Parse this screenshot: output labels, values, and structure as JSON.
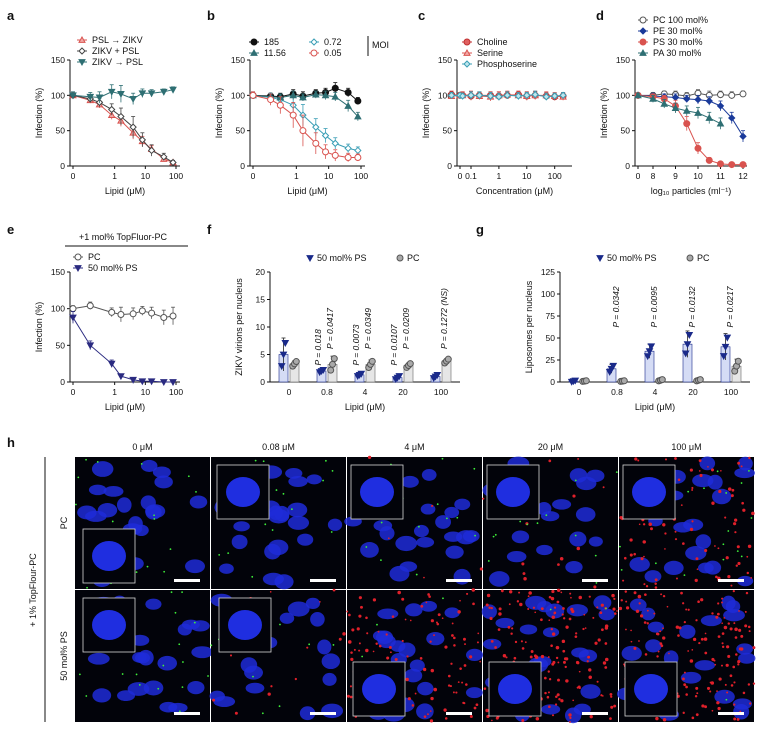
{
  "panels": [
    {
      "id": "a",
      "letter": "a",
      "type": "line",
      "xlabel": "Lipid (μM)",
      "ylabel": "Infection (%)",
      "xlog": true,
      "xzero": true,
      "xticks": [
        "0",
        "1",
        "10",
        "100"
      ],
      "yticks": [
        0,
        50,
        100,
        150
      ],
      "ylim": [
        0,
        150
      ],
      "legend": [
        "PSL → ZIKV",
        "ZIKV + PSL",
        "ZIKV → PSL"
      ],
      "series": [
        {
          "name": "PSL → ZIKV",
          "color": "#d9534f",
          "marker": "triangle",
          "fill": "#f2a8a6",
          "x": [
            0,
            0.16,
            0.32,
            0.8,
            1.6,
            4,
            8,
            16,
            40,
            80
          ],
          "y": [
            100,
            93,
            87,
            72,
            64,
            47,
            35,
            24,
            10,
            5
          ],
          "err": [
            4,
            4,
            5,
            6,
            8,
            9,
            7,
            5,
            3,
            2
          ]
        },
        {
          "name": "ZIKV + PSL",
          "color": "#444444",
          "marker": "diamond",
          "fill": "#ffffff",
          "x": [
            0,
            0.16,
            0.32,
            0.8,
            1.6,
            4,
            8,
            16,
            40,
            80
          ],
          "y": [
            100,
            95,
            90,
            80,
            70,
            55,
            37,
            22,
            13,
            5
          ],
          "err": [
            3,
            5,
            6,
            8,
            12,
            15,
            10,
            8,
            5,
            3
          ]
        },
        {
          "name": "ZIKV → PSL",
          "color": "#2e6f73",
          "marker": "tri-down",
          "fill": "#2e6f73",
          "x": [
            0,
            0.16,
            0.32,
            0.8,
            1.6,
            4,
            8,
            16,
            40,
            80
          ],
          "y": [
            100,
            98,
            97,
            105,
            102,
            95,
            103,
            103,
            105,
            108
          ],
          "err": [
            5,
            6,
            8,
            10,
            12,
            8,
            6,
            5,
            4,
            4
          ]
        }
      ]
    },
    {
      "id": "b",
      "letter": "b",
      "type": "line",
      "xlabel": "Lipid (μM)",
      "ylabel": "Infection (%)",
      "xlog": true,
      "xzero": true,
      "xticks": [
        "0",
        "1",
        "10",
        "100"
      ],
      "yticks": [
        0,
        50,
        100,
        150
      ],
      "ylim": [
        0,
        150
      ],
      "legend": [
        "185",
        "0.72",
        "11.56",
        "0.05"
      ],
      "legend_title": "MOI",
      "series": [
        {
          "name": "185",
          "color": "#111111",
          "marker": "circle",
          "fill": "#111111",
          "x": [
            0,
            0.16,
            0.32,
            0.8,
            1.6,
            4,
            8,
            16,
            40,
            80
          ],
          "y": [
            100,
            99,
            98,
            102,
            99,
            103,
            104,
            110,
            104,
            92
          ],
          "err": [
            3,
            4,
            5,
            6,
            6,
            5,
            6,
            8,
            6,
            5
          ]
        },
        {
          "name": "0.72",
          "color": "#3a9eb5",
          "marker": "diamond",
          "fill": "#ffffff",
          "x": [
            0,
            0.16,
            0.32,
            0.8,
            1.6,
            4,
            8,
            16,
            40,
            80
          ],
          "y": [
            100,
            97,
            94,
            86,
            72,
            55,
            43,
            32,
            25,
            22
          ],
          "err": [
            5,
            6,
            8,
            12,
            15,
            12,
            10,
            8,
            6,
            5
          ]
        },
        {
          "name": "11.56",
          "color": "#2e6f73",
          "marker": "triangle",
          "fill": "#2e6f73",
          "x": [
            0,
            0.16,
            0.32,
            0.8,
            1.6,
            4,
            8,
            16,
            40,
            80
          ],
          "y": [
            100,
            98,
            97,
            100,
            97,
            101,
            100,
            98,
            85,
            70
          ],
          "err": [
            3,
            4,
            5,
            6,
            5,
            5,
            6,
            6,
            8,
            6
          ]
        },
        {
          "name": "0.05",
          "color": "#d9534f",
          "marker": "circle",
          "fill": "#ffffff",
          "x": [
            0,
            0.16,
            0.32,
            0.8,
            1.6,
            4,
            8,
            16,
            40,
            80
          ],
          "y": [
            100,
            94,
            86,
            72,
            50,
            32,
            20,
            15,
            12,
            12
          ],
          "err": [
            5,
            8,
            12,
            18,
            22,
            15,
            10,
            8,
            6,
            5
          ]
        }
      ]
    },
    {
      "id": "c",
      "letter": "c",
      "type": "line",
      "xlabel": "Concentration (μM)",
      "ylabel": "Infection (%)",
      "xlog": true,
      "xzero": true,
      "xticks": [
        "0",
        "0.1",
        "1",
        "10",
        "100"
      ],
      "yticks": [
        0,
        50,
        100,
        150
      ],
      "ylim": [
        0,
        150
      ],
      "legend": [
        "Choline",
        "Serine",
        "Phosphoserine"
      ],
      "series": [
        {
          "name": "Choline",
          "color": "#c03030",
          "marker": "circle",
          "fill": "#e06060",
          "x": [
            0,
            0.02,
            0.05,
            0.1,
            0.2,
            0.5,
            1,
            2,
            5,
            10,
            20,
            50,
            100,
            200
          ],
          "y": [
            100,
            101,
            100,
            99,
            100,
            100,
            99,
            100,
            101,
            99,
            100,
            99,
            98,
            99
          ],
          "err": [
            4,
            5,
            5,
            6,
            5,
            5,
            6,
            5,
            5,
            6,
            5,
            5,
            5,
            5
          ]
        },
        {
          "name": "Serine",
          "color": "#d9534f",
          "marker": "triangle",
          "fill": "#f2a8a6",
          "x": [
            0,
            0.02,
            0.05,
            0.1,
            0.2,
            0.5,
            1,
            2,
            5,
            10,
            20,
            50,
            100,
            200
          ],
          "y": [
            100,
            99,
            100,
            101,
            99,
            98,
            100,
            101,
            100,
            99,
            100,
            100,
            99,
            98
          ],
          "err": [
            4,
            4,
            5,
            5,
            5,
            6,
            5,
            5,
            5,
            5,
            6,
            5,
            5,
            5
          ]
        },
        {
          "name": "Phosphoserine",
          "color": "#3a9eb5",
          "marker": "diamond",
          "fill": "#bfe6ee",
          "x": [
            0,
            0.02,
            0.05,
            0.1,
            0.2,
            0.5,
            1,
            2,
            5,
            10,
            20,
            50,
            100,
            200
          ],
          "y": [
            100,
            100,
            99,
            100,
            100,
            99,
            98,
            100,
            99,
            100,
            101,
            98,
            99,
            100
          ],
          "err": [
            3,
            4,
            4,
            5,
            5,
            5,
            5,
            5,
            5,
            4,
            5,
            5,
            4,
            4
          ]
        }
      ]
    },
    {
      "id": "d",
      "letter": "d",
      "type": "line",
      "xlabel": "log₁₀ particles (ml⁻¹)",
      "ylabel": "Infection (%)",
      "xlog": false,
      "xzero": false,
      "xrange": [
        0,
        12
      ],
      "xticks": [
        "0",
        "8",
        "9",
        "10",
        "11",
        "12"
      ],
      "yticks": [
        0,
        50,
        100,
        150
      ],
      "ylim": [
        0,
        150
      ],
      "legend": [
        "PC 100 mol%",
        "PE 30 mol%",
        "PS 30 mol%",
        "PA 30 mol%"
      ],
      "series": [
        {
          "name": "PC 100 mol%",
          "color": "#555555",
          "marker": "circle",
          "fill": "#ffffff",
          "x": [
            0,
            8,
            8.5,
            9,
            9.5,
            10,
            10.5,
            11,
            11.5,
            12
          ],
          "y": [
            100,
            100,
            102,
            101,
            99,
            103,
            100,
            101,
            100,
            102
          ],
          "err": [
            3,
            4,
            4,
            5,
            5,
            5,
            6,
            5,
            5,
            4
          ]
        },
        {
          "name": "PE 30 mol%",
          "color": "#1a3a9a",
          "marker": "diamond",
          "fill": "#1a3a9a",
          "x": [
            0,
            8,
            8.5,
            9,
            9.5,
            10,
            10.5,
            11,
            11.5,
            12
          ],
          "y": [
            100,
            99,
            98,
            97,
            95,
            94,
            92,
            85,
            68,
            42
          ],
          "err": [
            3,
            4,
            4,
            5,
            5,
            6,
            6,
            7,
            8,
            8
          ]
        },
        {
          "name": "PS 30 mol%",
          "color": "#d9534f",
          "marker": "circle",
          "fill": "#d9534f",
          "x": [
            0,
            8,
            8.5,
            9,
            9.5,
            10,
            10.5,
            11,
            11.5,
            12
          ],
          "y": [
            100,
            98,
            95,
            85,
            60,
            25,
            8,
            3,
            2,
            2
          ],
          "err": [
            3,
            4,
            5,
            8,
            10,
            8,
            4,
            2,
            1,
            1
          ]
        },
        {
          "name": "PA 30 mol%",
          "color": "#2e6f73",
          "marker": "triangle",
          "fill": "#2e6f73",
          "x": [
            0,
            8,
            8.5,
            9,
            9.5,
            10,
            10.5,
            11
          ],
          "y": [
            100,
            95,
            88,
            82,
            78,
            75,
            68,
            60
          ],
          "err": [
            3,
            5,
            6,
            7,
            7,
            8,
            8,
            8
          ]
        }
      ]
    },
    {
      "id": "e",
      "letter": "e",
      "type": "line",
      "header": "+1 mol% TopFluor-PC",
      "xlabel": "Lipid (μM)",
      "ylabel": "Infection (%)",
      "xlog": true,
      "xzero": true,
      "xticks": [
        "0",
        "1",
        "10",
        "100"
      ],
      "yticks": [
        0,
        50,
        100,
        150
      ],
      "ylim": [
        0,
        150
      ],
      "legend": [
        "PC",
        "50 mol% PS"
      ],
      "series": [
        {
          "name": "PC",
          "color": "#555555",
          "marker": "circle",
          "fill": "#ffffff",
          "x": [
            0,
            0.16,
            0.8,
            1.6,
            4,
            8,
            16,
            40,
            80
          ],
          "y": [
            100,
            104,
            95,
            92,
            93,
            97,
            94,
            88,
            90
          ],
          "err": [
            4,
            5,
            6,
            10,
            8,
            6,
            8,
            10,
            12
          ]
        },
        {
          "name": "50 mol% PS",
          "color": "#2a2a80",
          "marker": "tri-down",
          "fill": "#2a2a80",
          "x": [
            0,
            0.16,
            0.8,
            1.6,
            4,
            8,
            16,
            40,
            80
          ],
          "y": [
            88,
            50,
            25,
            8,
            3,
            1,
            1,
            0,
            0
          ],
          "err": [
            8,
            6,
            5,
            3,
            2,
            1,
            1,
            1,
            1
          ]
        }
      ]
    },
    {
      "id": "f",
      "letter": "f",
      "type": "bar",
      "ylabel": "ZIKV virions per nucleus",
      "xlabel": "Lipid (μM)",
      "categories": [
        "0",
        "0.8",
        "4",
        "20",
        "100"
      ],
      "yticks": [
        0,
        5,
        10,
        15,
        20
      ],
      "ylim": [
        0,
        20
      ],
      "legend": [
        "50 mol% PS",
        "PC"
      ],
      "series": [
        {
          "name": "50 mol% PS",
          "color": "#d5dcf5",
          "edge": "#1a2a8a",
          "values": [
            5.0,
            2.0,
            1.3,
            0.8,
            1.0
          ],
          "err": [
            3.0,
            0.3,
            0.3,
            0.4,
            0.4
          ]
        },
        {
          "name": "PC",
          "color": "#e6e6e6",
          "edge": "#666666",
          "values": [
            3.3,
            3.2,
            3.2,
            3.0,
            3.8
          ],
          "err": [
            0.6,
            1.5,
            0.8,
            0.5,
            0.5
          ]
        }
      ],
      "pvalues": [
        "P = 0.0417",
        "P = 0.0349",
        "P = 0.0209",
        "P = 0.1272 (NS)"
      ],
      "pvalues2": [
        "P = 0.018",
        "P = 0.0073",
        "P = 0.0107"
      ]
    },
    {
      "id": "g",
      "letter": "g",
      "type": "bar",
      "ylabel": "Liposomes per nucleus",
      "xlabel": "Lipid (μM)",
      "categories": [
        "0",
        "0.8",
        "4",
        "20",
        "100"
      ],
      "yticks": [
        0,
        25,
        50,
        75,
        100,
        125
      ],
      "ylim": [
        0,
        125
      ],
      "legend": [
        "50 mol% PS",
        "PC"
      ],
      "series": [
        {
          "name": "50 mol% PS",
          "color": "#d5dcf5",
          "edge": "#1a2a8a",
          "values": [
            1,
            15,
            35,
            43,
            40
          ],
          "err": [
            1,
            5,
            8,
            15,
            15
          ]
        },
        {
          "name": "PC",
          "color": "#e6e6e6",
          "edge": "#666666",
          "values": [
            1,
            1,
            2,
            2,
            18
          ],
          "err": [
            0.5,
            0.5,
            1,
            1,
            8
          ]
        }
      ],
      "pvalues": [
        "P = 0.0342",
        "P = 0.0095",
        "P = 0.0132",
        "P = 0.0217"
      ]
    }
  ],
  "microscopy": {
    "letter": "h",
    "columns": [
      "0 μM",
      "0.08 μM",
      "4 μM",
      "20 μM",
      "100 μM"
    ],
    "rows": [
      "PC",
      "50 mol% PS"
    ],
    "side_label": "+ 1% TopFlour-PC"
  }
}
